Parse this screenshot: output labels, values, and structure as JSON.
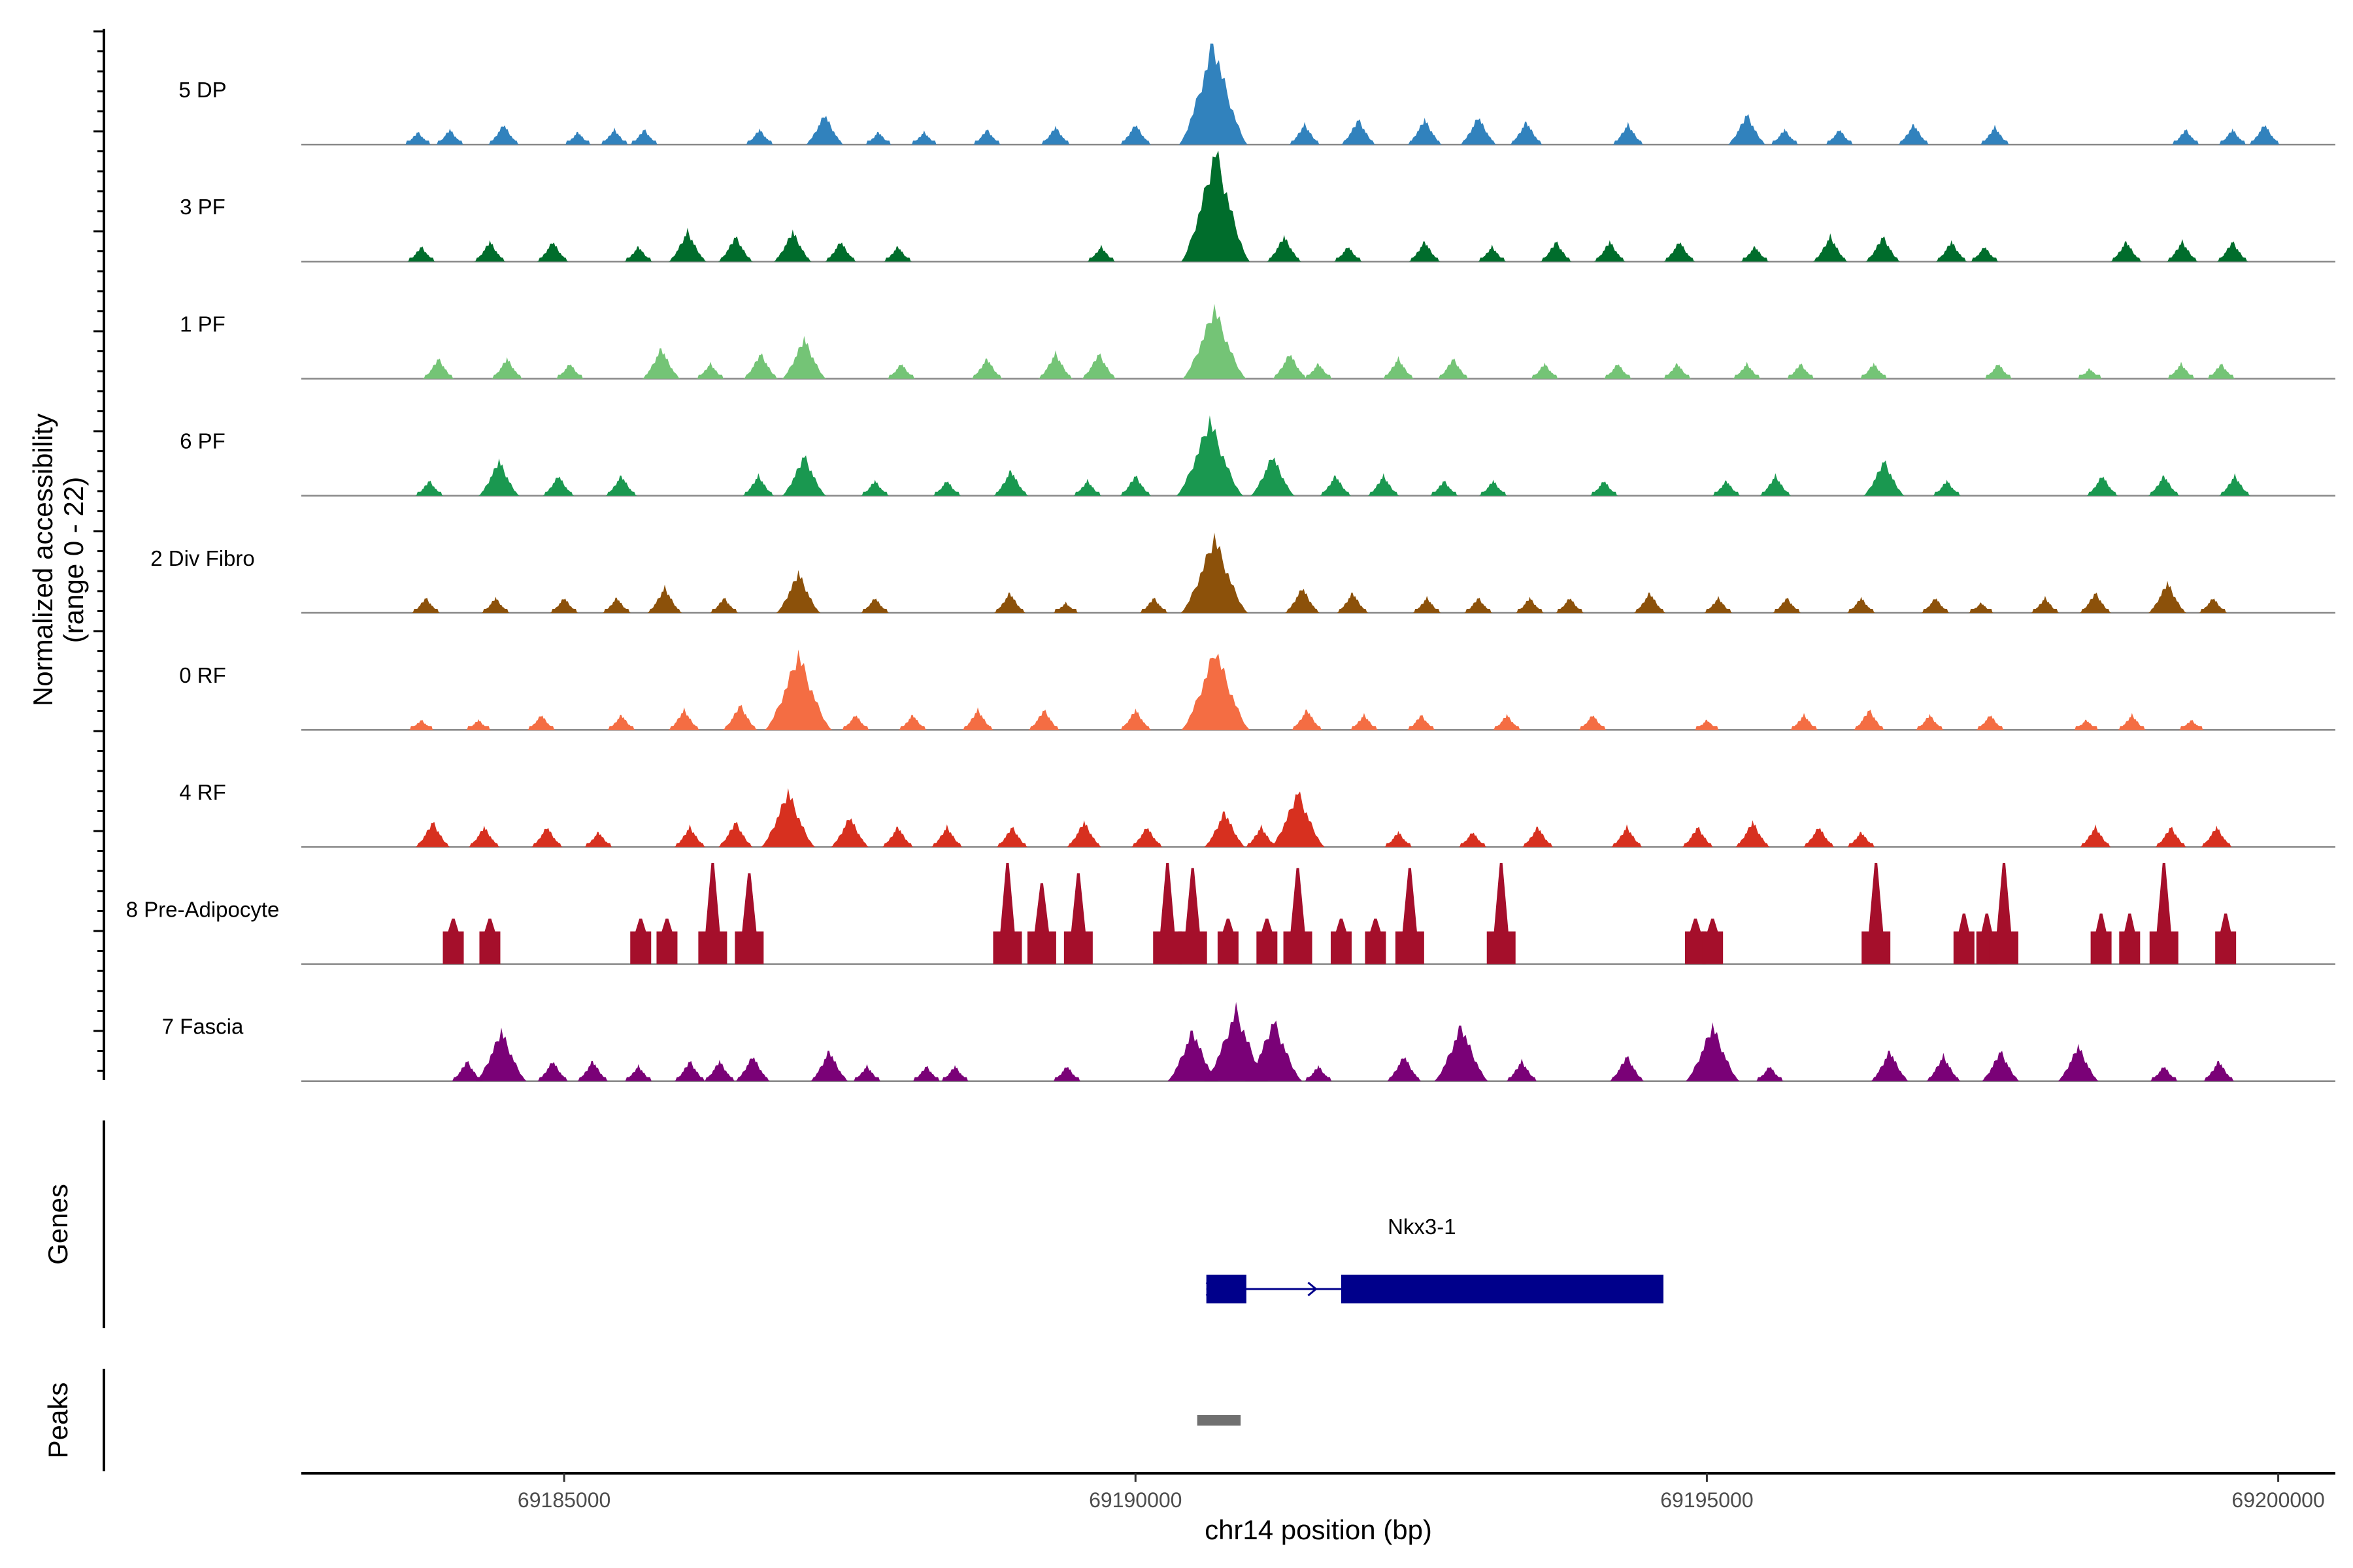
{
  "chart_data": {
    "type": "coverage-track",
    "title": "",
    "ylabel_line1": "Normalized accessibility",
    "ylabel_line2": "(range 0 - 22)",
    "ylim": [
      0,
      22
    ],
    "xlabel": "chr14 position (bp)",
    "xlim": [
      69182700,
      69200500
    ],
    "x_ticks": [
      69185000,
      69190000,
      69195000,
      69200000
    ],
    "x_tick_labels": [
      "69185000",
      "69190000",
      "69195000",
      "69200000"
    ],
    "series": [
      {
        "name": "5 DP",
        "color": "#3182bd",
        "peaks": [
          [
            69183720,
            2.5
          ],
          [
            69184000,
            3
          ],
          [
            69184470,
            4
          ],
          [
            69185120,
            2.5
          ],
          [
            69185440,
            3
          ],
          [
            69185700,
            3
          ],
          [
            69186710,
            3
          ],
          [
            69187280,
            6
          ],
          [
            69187750,
            2.5
          ],
          [
            69188150,
            2.5
          ],
          [
            69188700,
            3
          ],
          [
            69189300,
            3.5
          ],
          [
            69190000,
            4
          ],
          [
            69190680,
            20
          ],
          [
            69191480,
            4
          ],
          [
            69191950,
            5
          ],
          [
            69192530,
            5
          ],
          [
            69193000,
            5.5
          ],
          [
            69193420,
            4.5
          ],
          [
            69194310,
            4
          ],
          [
            69195350,
            6
          ],
          [
            69195680,
            3
          ],
          [
            69196160,
            3
          ],
          [
            69196810,
            4
          ],
          [
            69197520,
            3.5
          ],
          [
            69199190,
            3
          ],
          [
            69199600,
            3
          ],
          [
            69199880,
            4
          ]
        ]
      },
      {
        "name": "3 PF",
        "color": "#006d2c",
        "peaks": [
          [
            69183750,
            3
          ],
          [
            69184350,
            4
          ],
          [
            69184900,
            4
          ],
          [
            69185650,
            3
          ],
          [
            69186080,
            6
          ],
          [
            69186500,
            5
          ],
          [
            69187000,
            6
          ],
          [
            69187420,
            4
          ],
          [
            69187920,
            3
          ],
          [
            69189700,
            3
          ],
          [
            69190700,
            22
          ],
          [
            69191300,
            5
          ],
          [
            69191860,
            3
          ],
          [
            69192530,
            4
          ],
          [
            69193120,
            3
          ],
          [
            69193680,
            4
          ],
          [
            69194150,
            4
          ],
          [
            69194760,
            4
          ],
          [
            69195420,
            3
          ],
          [
            69196080,
            5
          ],
          [
            69196540,
            5
          ],
          [
            69197140,
            4
          ],
          [
            69197430,
            3
          ],
          [
            69198670,
            4
          ],
          [
            69199160,
            4
          ],
          [
            69199600,
            4
          ]
        ]
      },
      {
        "name": "1 PF",
        "color": "#74c476",
        "peaks": [
          [
            69183900,
            4
          ],
          [
            69184500,
            4
          ],
          [
            69185050,
            3
          ],
          [
            69185850,
            6
          ],
          [
            69186280,
            3
          ],
          [
            69186720,
            5
          ],
          [
            69187100,
            8
          ],
          [
            69187950,
            3
          ],
          [
            69188700,
            4
          ],
          [
            69189300,
            5
          ],
          [
            69189680,
            5
          ],
          [
            69190690,
            14
          ],
          [
            69191350,
            5
          ],
          [
            69191600,
            3
          ],
          [
            69192300,
            4
          ],
          [
            69192780,
            4
          ],
          [
            69193580,
            3
          ],
          [
            69194220,
            3
          ],
          [
            69194740,
            3
          ],
          [
            69195350,
            3
          ],
          [
            69195820,
            3
          ],
          [
            69196460,
            3
          ],
          [
            69197550,
            3
          ],
          [
            69198350,
            2
          ],
          [
            69199150,
            3
          ],
          [
            69199500,
            3
          ]
        ]
      },
      {
        "name": "6 PF",
        "color": "#1a9850",
        "peaks": [
          [
            69183820,
            3
          ],
          [
            69184430,
            7
          ],
          [
            69184950,
            4
          ],
          [
            69185500,
            4
          ],
          [
            69186700,
            4
          ],
          [
            69187100,
            8
          ],
          [
            69187720,
            3
          ],
          [
            69188350,
            3
          ],
          [
            69188910,
            5
          ],
          [
            69189580,
            3
          ],
          [
            69190000,
            4
          ],
          [
            69190650,
            15
          ],
          [
            69191200,
            8
          ],
          [
            69191750,
            4
          ],
          [
            69192170,
            4
          ],
          [
            69192700,
            3
          ],
          [
            69193130,
            3
          ],
          [
            69194100,
            3
          ],
          [
            69195170,
            3
          ],
          [
            69195600,
            4
          ],
          [
            69196550,
            7
          ],
          [
            69197100,
            3
          ],
          [
            69198460,
            4
          ],
          [
            69199000,
            4
          ],
          [
            69199620,
            4
          ]
        ]
      },
      {
        "name": "2 Div Fibro",
        "color": "#8c510a",
        "peaks": [
          [
            69183790,
            3
          ],
          [
            69184400,
            3
          ],
          [
            69185000,
            3
          ],
          [
            69185460,
            3
          ],
          [
            69185880,
            5
          ],
          [
            69186400,
            3
          ],
          [
            69187050,
            8
          ],
          [
            69187720,
            3
          ],
          [
            69188900,
            4
          ],
          [
            69189390,
            2
          ],
          [
            69190160,
            3
          ],
          [
            69190690,
            15
          ],
          [
            69191460,
            5
          ],
          [
            69191900,
            4
          ],
          [
            69192550,
            3
          ],
          [
            69193000,
            3
          ],
          [
            69193450,
            3
          ],
          [
            69193800,
            3
          ],
          [
            69194500,
            4
          ],
          [
            69195100,
            3
          ],
          [
            69195700,
            3
          ],
          [
            69196350,
            3
          ],
          [
            69197000,
            3
          ],
          [
            69197400,
            2
          ],
          [
            69197960,
            3
          ],
          [
            69198400,
            4
          ],
          [
            69199030,
            6
          ],
          [
            69199430,
            3
          ]
        ]
      },
      {
        "name": "0 RF",
        "color": "#f46d43",
        "peaks": [
          [
            69183750,
            2
          ],
          [
            69184250,
            2
          ],
          [
            69184800,
            3
          ],
          [
            69185500,
            3
          ],
          [
            69186050,
            4
          ],
          [
            69186540,
            5
          ],
          [
            69187050,
            15
          ],
          [
            69187550,
            3
          ],
          [
            69188050,
            3
          ],
          [
            69188620,
            4
          ],
          [
            69189200,
            4
          ],
          [
            69190000,
            4
          ],
          [
            69190700,
            16
          ],
          [
            69191500,
            4
          ],
          [
            69192000,
            3
          ],
          [
            69192500,
            3
          ],
          [
            69193250,
            3
          ],
          [
            69194000,
            3
          ],
          [
            69195000,
            2
          ],
          [
            69195850,
            3
          ],
          [
            69196420,
            4
          ],
          [
            69196950,
            3
          ],
          [
            69197480,
            3
          ],
          [
            69198320,
            2
          ],
          [
            69198720,
            3
          ],
          [
            69199240,
            2
          ]
        ]
      },
      {
        "name": "4 RF",
        "color": "#d7301f",
        "peaks": [
          [
            69183850,
            5
          ],
          [
            69184300,
            4
          ],
          [
            69184850,
            4
          ],
          [
            69185300,
            3
          ],
          [
            69186100,
            4
          ],
          [
            69186500,
            5
          ],
          [
            69186960,
            11
          ],
          [
            69187500,
            6
          ],
          [
            69187920,
            4
          ],
          [
            69188350,
            4
          ],
          [
            69188920,
            4
          ],
          [
            69189550,
            5
          ],
          [
            69190100,
            4
          ],
          [
            69190780,
            7
          ],
          [
            69191100,
            4
          ],
          [
            69191420,
            11
          ],
          [
            69192300,
            3
          ],
          [
            69192950,
            3
          ],
          [
            69193520,
            4
          ],
          [
            69194300,
            4
          ],
          [
            69194920,
            4
          ],
          [
            69195400,
            5
          ],
          [
            69195980,
            4
          ],
          [
            69196350,
            3
          ],
          [
            69198400,
            4
          ],
          [
            69199060,
            4
          ],
          [
            69199460,
            4
          ]
        ]
      },
      {
        "name": "8 Pre-Adipocyte",
        "color": "#a50f2b",
        "peaks": [
          [
            69184030,
            9
          ],
          [
            69184350,
            9
          ],
          [
            69185670,
            9
          ],
          [
            69185900,
            9
          ],
          [
            69186300,
            20
          ],
          [
            69186620,
            18
          ],
          [
            69188880,
            20
          ],
          [
            69189180,
            16
          ],
          [
            69189500,
            18
          ],
          [
            69190280,
            20
          ],
          [
            69190500,
            19
          ],
          [
            69190810,
            9
          ],
          [
            69191150,
            9
          ],
          [
            69191420,
            19
          ],
          [
            69191800,
            9
          ],
          [
            69192100,
            9
          ],
          [
            69192400,
            19
          ],
          [
            69193200,
            20
          ],
          [
            69194900,
            9
          ],
          [
            69195050,
            9
          ],
          [
            69196480,
            20
          ],
          [
            69197250,
            10
          ],
          [
            69197450,
            10
          ],
          [
            69197600,
            20
          ],
          [
            69198450,
            10
          ],
          [
            69198700,
            10
          ],
          [
            69199000,
            20
          ],
          [
            69199540,
            10
          ]
        ]
      },
      {
        "name": "7 Fascia",
        "color": "#7a0177",
        "peaks": [
          [
            69184150,
            4
          ],
          [
            69184450,
            10
          ],
          [
            69184900,
            4
          ],
          [
            69185250,
            4
          ],
          [
            69185650,
            3
          ],
          [
            69186100,
            4
          ],
          [
            69186360,
            4
          ],
          [
            69186650,
            5
          ],
          [
            69187320,
            6
          ],
          [
            69187650,
            3
          ],
          [
            69188170,
            3
          ],
          [
            69188420,
            3
          ],
          [
            69189400,
            3
          ],
          [
            69190500,
            10
          ],
          [
            69190880,
            14
          ],
          [
            69191210,
            12
          ],
          [
            69191600,
            3
          ],
          [
            69192350,
            5
          ],
          [
            69192850,
            11
          ],
          [
            69193380,
            4
          ],
          [
            69194300,
            5
          ],
          [
            69195050,
            11
          ],
          [
            69195550,
            3
          ],
          [
            69196600,
            6
          ],
          [
            69197070,
            5
          ],
          [
            69197570,
            6
          ],
          [
            69198250,
            7
          ],
          [
            69199000,
            3
          ],
          [
            69199480,
            4
          ]
        ]
      }
    ],
    "genes_track": {
      "label": "Genes",
      "gene_name": "Nkx3-1",
      "strand": "+",
      "exons": [
        [
          69190620,
          69190970
        ],
        [
          69191800,
          69194620
        ]
      ],
      "gene_span": [
        69190620,
        69194620
      ]
    },
    "peaks_track": {
      "label": "Peaks",
      "regions": [
        [
          69190540,
          69190920
        ]
      ]
    }
  }
}
